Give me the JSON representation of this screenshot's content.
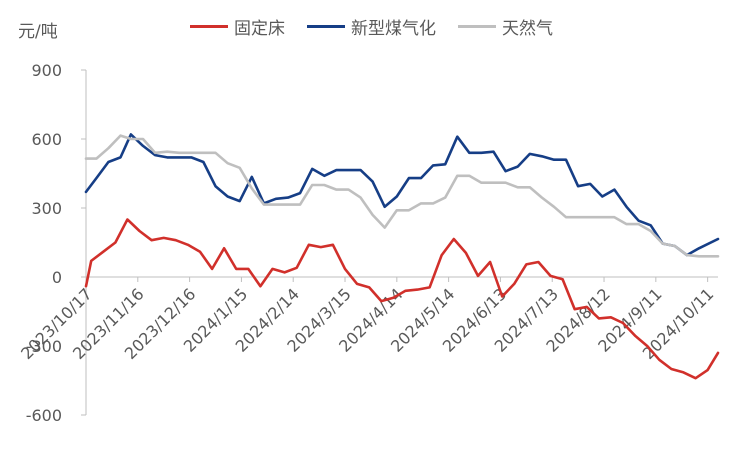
{
  "chart_data": {
    "type": "line",
    "unit_label": "元/吨",
    "ylim": [
      -600,
      900
    ],
    "yticks": [
      -600,
      -300,
      0,
      300,
      600,
      900
    ],
    "ytick_labels": [
      "-600",
      "-300",
      "0",
      "300",
      "600",
      "900"
    ],
    "xtick_labels": [
      "2023/10/17",
      "2023/11/16",
      "2023/12/16",
      "2024/1/15",
      "2024/2/14",
      "2024/3/15",
      "2024/4/14",
      "2024/5/14",
      "2024/6/13",
      "2024/7/13",
      "2024/8/12",
      "2024/9/11",
      "2024/10/11"
    ],
    "x_range": [
      "2023/10/17",
      "2024/10/17"
    ],
    "grid": false,
    "legend_position": "top",
    "series": [
      {
        "name": "固定床",
        "color": "#d1302b",
        "points": [
          [
            "2023-10-17",
            -40
          ],
          [
            "2023-10-20",
            70
          ],
          [
            "2023-10-27",
            110
          ],
          [
            "2023-11-03",
            150
          ],
          [
            "2023-11-10",
            250
          ],
          [
            "2023-11-17",
            200
          ],
          [
            "2023-11-24",
            160
          ],
          [
            "2023-12-01",
            170
          ],
          [
            "2023-12-08",
            160
          ],
          [
            "2023-12-15",
            140
          ],
          [
            "2023-12-22",
            110
          ],
          [
            "2023-12-29",
            35
          ],
          [
            "2024-01-05",
            125
          ],
          [
            "2024-01-12",
            35
          ],
          [
            "2024-01-19",
            35
          ],
          [
            "2024-01-26",
            -40
          ],
          [
            "2024-02-02",
            35
          ],
          [
            "2024-02-09",
            20
          ],
          [
            "2024-02-16",
            40
          ],
          [
            "2024-02-23",
            140
          ],
          [
            "2024-03-01",
            130
          ],
          [
            "2024-03-08",
            140
          ],
          [
            "2024-03-15",
            35
          ],
          [
            "2024-03-22",
            -30
          ],
          [
            "2024-03-29",
            -45
          ],
          [
            "2024-04-05",
            -105
          ],
          [
            "2024-04-12",
            -90
          ],
          [
            "2024-04-19",
            -60
          ],
          [
            "2024-04-26",
            -55
          ],
          [
            "2024-05-03",
            -45
          ],
          [
            "2024-05-10",
            95
          ],
          [
            "2024-05-17",
            165
          ],
          [
            "2024-05-24",
            105
          ],
          [
            "2024-05-31",
            5
          ],
          [
            "2024-06-07",
            65
          ],
          [
            "2024-06-14",
            -85
          ],
          [
            "2024-06-21",
            -30
          ],
          [
            "2024-06-28",
            55
          ],
          [
            "2024-07-05",
            65
          ],
          [
            "2024-07-12",
            5
          ],
          [
            "2024-07-19",
            -10
          ],
          [
            "2024-07-26",
            -140
          ],
          [
            "2024-08-02",
            -130
          ],
          [
            "2024-08-09",
            -180
          ],
          [
            "2024-08-16",
            -175
          ],
          [
            "2024-08-23",
            -200
          ],
          [
            "2024-08-30",
            -255
          ],
          [
            "2024-09-06",
            -300
          ],
          [
            "2024-09-13",
            -360
          ],
          [
            "2024-09-20",
            -400
          ],
          [
            "2024-09-27",
            -415
          ],
          [
            "2024-10-04",
            -440
          ],
          [
            "2024-10-11",
            -405
          ],
          [
            "2024-10-17",
            -330
          ]
        ]
      },
      {
        "name": "新型煤气化",
        "color": "#163e86",
        "points": [
          [
            "2023-10-17",
            370
          ],
          [
            "2023-10-23",
            430
          ],
          [
            "2023-10-30",
            500
          ],
          [
            "2023-11-06",
            520
          ],
          [
            "2023-11-12",
            620
          ],
          [
            "2023-11-19",
            570
          ],
          [
            "2023-11-26",
            530
          ],
          [
            "2023-12-03",
            520
          ],
          [
            "2023-12-10",
            520
          ],
          [
            "2023-12-17",
            520
          ],
          [
            "2023-12-24",
            500
          ],
          [
            "2023-12-31",
            395
          ],
          [
            "2024-01-07",
            350
          ],
          [
            "2024-01-14",
            330
          ],
          [
            "2024-01-21",
            435
          ],
          [
            "2024-01-28",
            320
          ],
          [
            "2024-02-04",
            340
          ],
          [
            "2024-02-11",
            345
          ],
          [
            "2024-02-18",
            365
          ],
          [
            "2024-02-25",
            470
          ],
          [
            "2024-03-03",
            440
          ],
          [
            "2024-03-10",
            465
          ],
          [
            "2024-03-17",
            465
          ],
          [
            "2024-03-24",
            465
          ],
          [
            "2024-03-31",
            415
          ],
          [
            "2024-04-07",
            305
          ],
          [
            "2024-04-14",
            350
          ],
          [
            "2024-04-21",
            430
          ],
          [
            "2024-04-28",
            430
          ],
          [
            "2024-05-05",
            485
          ],
          [
            "2024-05-12",
            490
          ],
          [
            "2024-05-19",
            610
          ],
          [
            "2024-05-26",
            540
          ],
          [
            "2024-06-02",
            540
          ],
          [
            "2024-06-09",
            545
          ],
          [
            "2024-06-16",
            460
          ],
          [
            "2024-06-23",
            480
          ],
          [
            "2024-06-30",
            535
          ],
          [
            "2024-07-07",
            525
          ],
          [
            "2024-07-14",
            510
          ],
          [
            "2024-07-21",
            510
          ],
          [
            "2024-07-28",
            395
          ],
          [
            "2024-08-04",
            405
          ],
          [
            "2024-08-11",
            350
          ],
          [
            "2024-08-18",
            380
          ],
          [
            "2024-08-25",
            305
          ],
          [
            "2024-09-01",
            245
          ],
          [
            "2024-09-08",
            225
          ],
          [
            "2024-09-15",
            145
          ],
          [
            "2024-09-22",
            135
          ],
          [
            "2024-09-29",
            95
          ],
          [
            "2024-10-06",
            125
          ],
          [
            "2024-10-17",
            165
          ]
        ]
      },
      {
        "name": "天然气",
        "color": "#bfbfbf",
        "points": [
          [
            "2023-10-17",
            515
          ],
          [
            "2023-10-23",
            515
          ],
          [
            "2023-10-30",
            560
          ],
          [
            "2023-11-06",
            615
          ],
          [
            "2023-11-12",
            600
          ],
          [
            "2023-11-19",
            600
          ],
          [
            "2023-11-26",
            540
          ],
          [
            "2023-12-03",
            545
          ],
          [
            "2023-12-10",
            540
          ],
          [
            "2023-12-17",
            540
          ],
          [
            "2023-12-24",
            540
          ],
          [
            "2023-12-31",
            540
          ],
          [
            "2024-01-07",
            495
          ],
          [
            "2024-01-14",
            475
          ],
          [
            "2024-01-21",
            385
          ],
          [
            "2024-01-28",
            315
          ],
          [
            "2024-02-04",
            315
          ],
          [
            "2024-02-11",
            315
          ],
          [
            "2024-02-18",
            315
          ],
          [
            "2024-02-25",
            400
          ],
          [
            "2024-03-03",
            400
          ],
          [
            "2024-03-10",
            380
          ],
          [
            "2024-03-17",
            380
          ],
          [
            "2024-03-24",
            345
          ],
          [
            "2024-03-31",
            270
          ],
          [
            "2024-04-07",
            215
          ],
          [
            "2024-04-14",
            290
          ],
          [
            "2024-04-21",
            290
          ],
          [
            "2024-04-28",
            320
          ],
          [
            "2024-05-05",
            320
          ],
          [
            "2024-05-12",
            345
          ],
          [
            "2024-05-19",
            440
          ],
          [
            "2024-05-26",
            440
          ],
          [
            "2024-06-02",
            410
          ],
          [
            "2024-06-09",
            410
          ],
          [
            "2024-06-16",
            410
          ],
          [
            "2024-06-23",
            390
          ],
          [
            "2024-06-30",
            390
          ],
          [
            "2024-07-07",
            345
          ],
          [
            "2024-07-14",
            305
          ],
          [
            "2024-07-21",
            260
          ],
          [
            "2024-07-28",
            260
          ],
          [
            "2024-08-04",
            260
          ],
          [
            "2024-08-11",
            260
          ],
          [
            "2024-08-18",
            260
          ],
          [
            "2024-08-25",
            230
          ],
          [
            "2024-09-01",
            230
          ],
          [
            "2024-09-08",
            200
          ],
          [
            "2024-09-15",
            145
          ],
          [
            "2024-09-22",
            135
          ],
          [
            "2024-09-29",
            95
          ],
          [
            "2024-10-06",
            90
          ],
          [
            "2024-10-17",
            90
          ]
        ]
      }
    ]
  }
}
